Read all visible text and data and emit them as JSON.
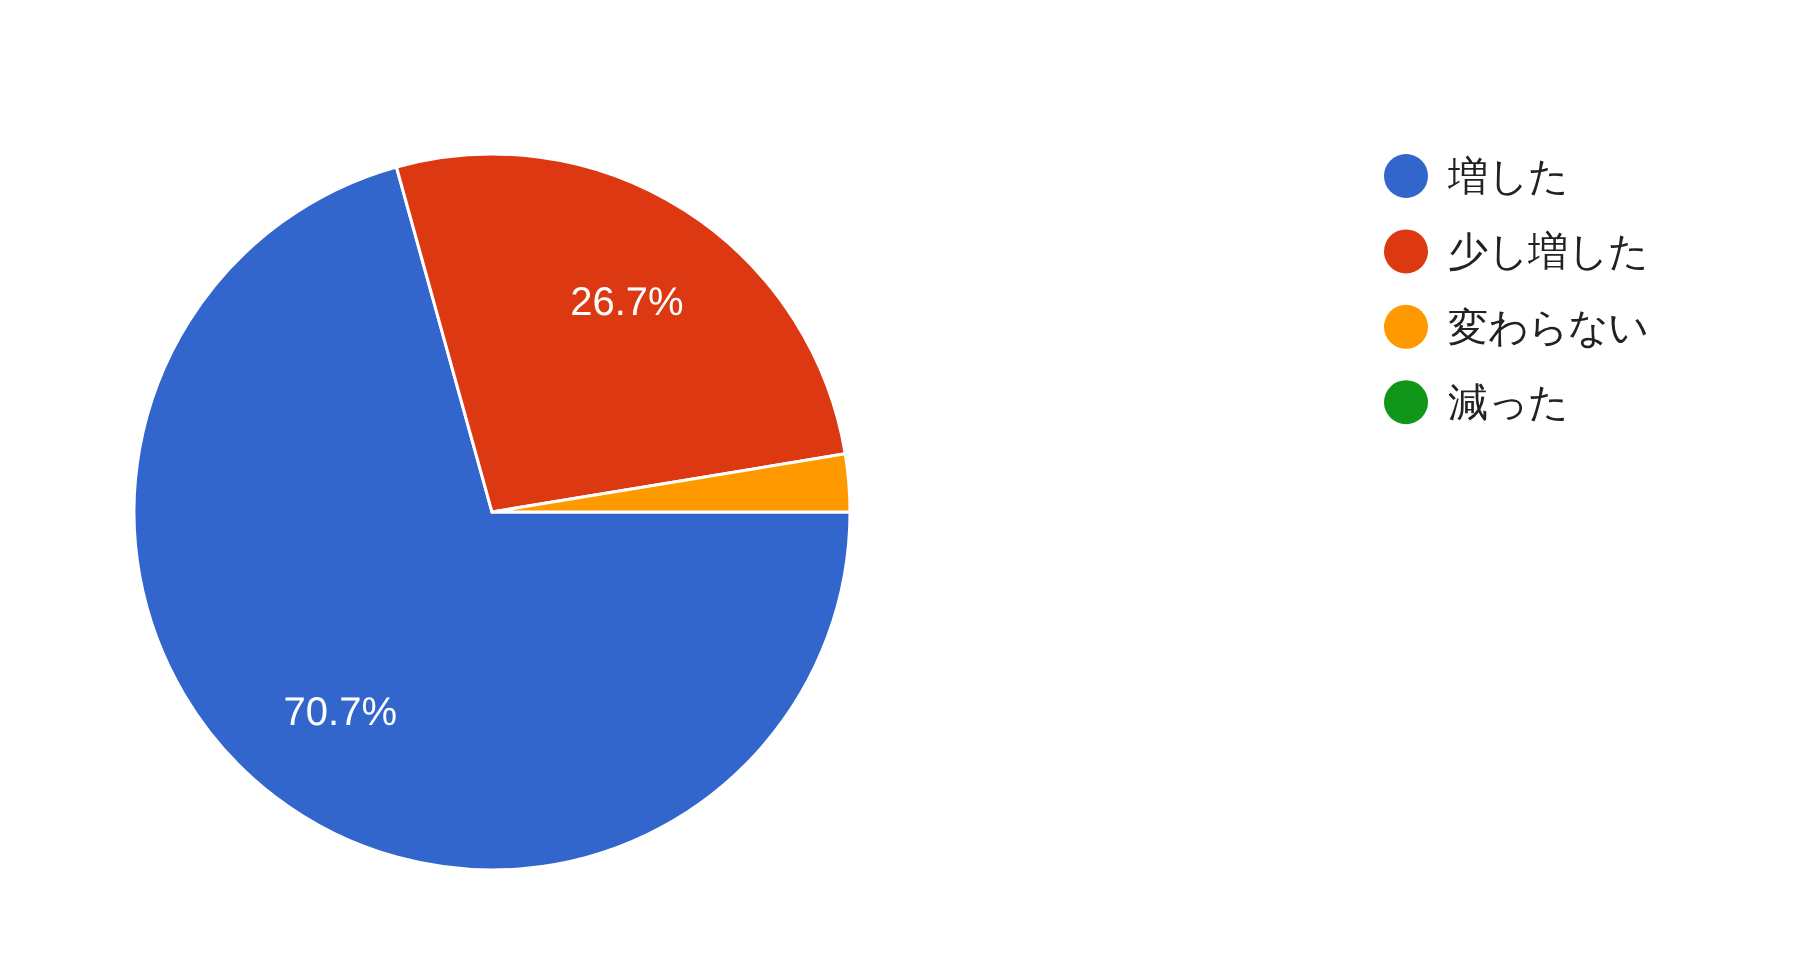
{
  "chart_data": {
    "type": "pie",
    "categories": [
      "増した",
      "少し増した",
      "変わらない",
      "減った"
    ],
    "values": [
      70.7,
      26.7,
      2.6,
      0
    ],
    "colors": [
      "#3366cc",
      "#dc3912",
      "#ff9900",
      "#109618"
    ],
    "value_labels": [
      "70.7%",
      "26.7%",
      null,
      null
    ],
    "legend": "right"
  }
}
